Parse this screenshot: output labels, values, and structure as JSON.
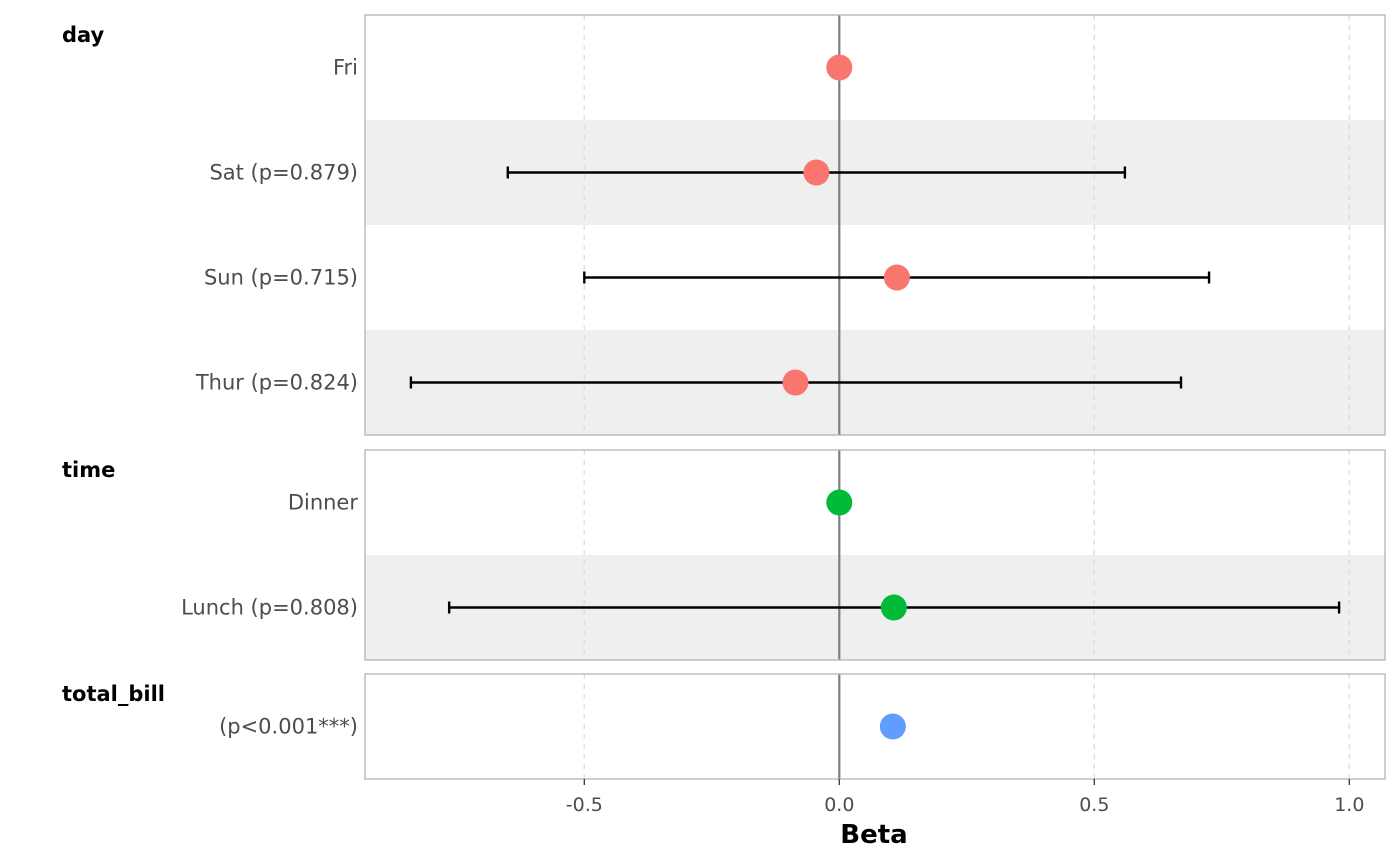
{
  "chart_data": {
    "type": "forest",
    "xlabel": "Beta",
    "xlim": [
      -0.93,
      1.07
    ],
    "xticks": [
      {
        "value": -0.5,
        "label": "-0.5"
      },
      {
        "value": 0.0,
        "label": "0.0"
      },
      {
        "value": 0.5,
        "label": "0.5"
      },
      {
        "value": 1.0,
        "label": "1.0"
      }
    ],
    "reference_line": 0,
    "grid": "vertical dashed",
    "groups": [
      {
        "name": "day",
        "color": "#F8766D",
        "rows": [
          {
            "label": "Fri",
            "estimate": 0.0,
            "ci_low": null,
            "ci_high": null
          },
          {
            "label": "Sat (p=0.879)",
            "estimate": -0.045,
            "ci_low": -0.65,
            "ci_high": 0.56
          },
          {
            "label": "Sun (p=0.715)",
            "estimate": 0.113,
            "ci_low": -0.5,
            "ci_high": 0.725
          },
          {
            "label": "Thur (p=0.824)",
            "estimate": -0.086,
            "ci_low": -0.84,
            "ci_high": 0.67
          }
        ]
      },
      {
        "name": "time",
        "color": "#00BA38",
        "rows": [
          {
            "label": "Dinner",
            "estimate": 0.0,
            "ci_low": null,
            "ci_high": null
          },
          {
            "label": "Lunch (p=0.808)",
            "estimate": 0.107,
            "ci_low": -0.765,
            "ci_high": 0.98
          }
        ]
      },
      {
        "name": "total_bill",
        "color": "#619CFF",
        "rows": [
          {
            "label": "(p<0.001***)",
            "estimate": 0.105,
            "ci_low": 0.098,
            "ci_high": 0.112
          }
        ]
      }
    ]
  }
}
